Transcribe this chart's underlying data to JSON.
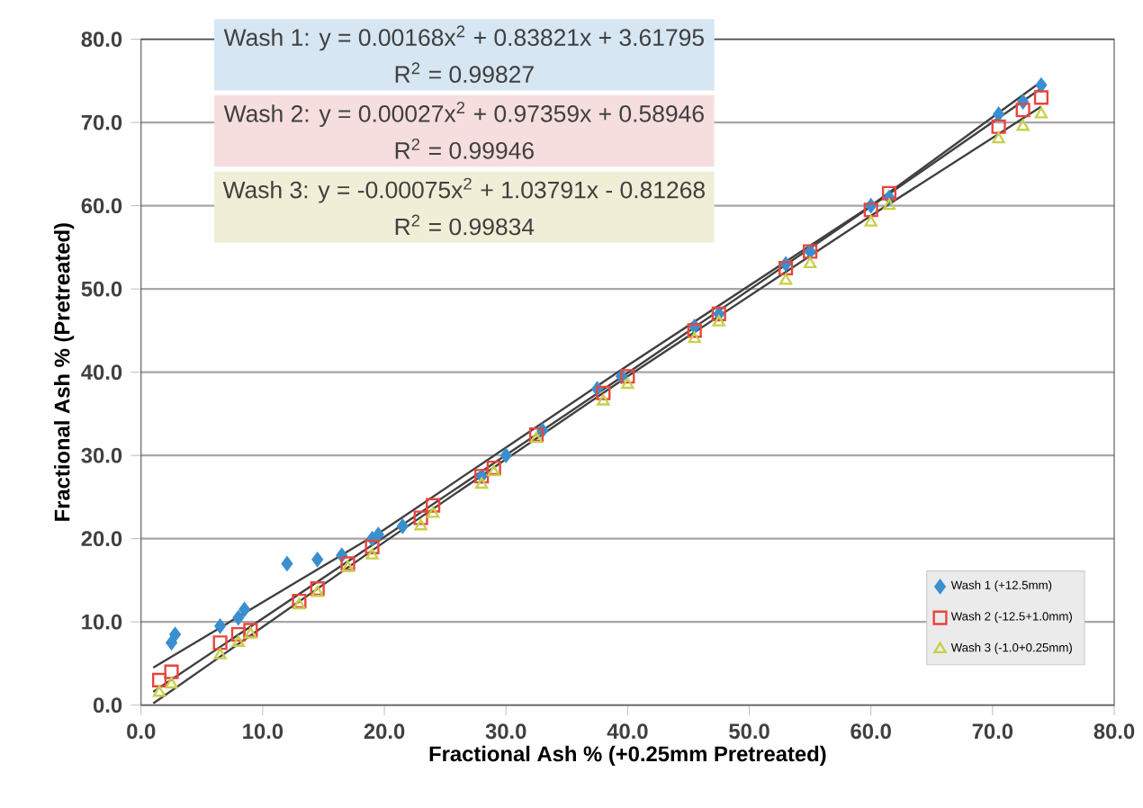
{
  "chart_data": {
    "type": "scatter",
    "xlabel": "Fractional Ash % (+0.25mm Pretreated)",
    "ylabel": "Fractional Ash % (Pretreated)",
    "xlim": [
      0,
      80
    ],
    "ylim": [
      0,
      80
    ],
    "xticks": [
      {
        "value": 0,
        "label": "0.0"
      },
      {
        "value": 10,
        "label": "10.0"
      },
      {
        "value": 20,
        "label": "20.0"
      },
      {
        "value": 30,
        "label": "30.0"
      },
      {
        "value": 40,
        "label": "40.0"
      },
      {
        "value": 50,
        "label": "50.0"
      },
      {
        "value": 60,
        "label": "60.0"
      },
      {
        "value": 70,
        "label": "70.0"
      },
      {
        "value": 80,
        "label": "80.0"
      }
    ],
    "yticks": [
      {
        "value": 0,
        "label": "0.0"
      },
      {
        "value": 10,
        "label": "10.0"
      },
      {
        "value": 20,
        "label": "20.0"
      },
      {
        "value": 30,
        "label": "30.0"
      },
      {
        "value": 40,
        "label": "40.0"
      },
      {
        "value": 50,
        "label": "50.0"
      },
      {
        "value": 60,
        "label": "60.0"
      },
      {
        "value": 70,
        "label": "70.0"
      },
      {
        "value": 80,
        "label": "80.0"
      }
    ],
    "grid": "y",
    "legend": "bottom right",
    "series": [
      {
        "name": "Wash 1 (+12.5mm)",
        "color": "#3a8fd0",
        "marker": "diamond",
        "x": [
          2.5,
          2.8,
          6.5,
          8,
          8.5,
          12,
          14.5,
          16.5,
          19,
          19.5,
          21.5,
          28,
          30,
          33,
          37.5,
          39.5,
          45.5,
          47.5,
          53,
          55,
          60,
          61.5,
          70.5,
          72.5,
          74
        ],
        "values": [
          7.5,
          8.5,
          9.5,
          10.5,
          11.5,
          17,
          17.5,
          18,
          20,
          20.5,
          21.5,
          27.5,
          30,
          33,
          38,
          39.5,
          45.5,
          47,
          53,
          54.5,
          60,
          61,
          71,
          72.5,
          74.5
        ]
      },
      {
        "name": "Wash 2 (-12.5+1.0mm)",
        "color": "#e8453c",
        "marker": "square",
        "x": [
          1.5,
          2.5,
          6.5,
          8,
          9,
          13,
          14.5,
          17,
          19,
          23,
          24,
          28,
          29,
          32.5,
          38,
          40,
          45.5,
          47.5,
          53,
          55,
          60,
          61.5,
          70.5,
          72.5,
          74
        ],
        "values": [
          3,
          4,
          7.5,
          8.5,
          9,
          12.5,
          14,
          17,
          19,
          22.5,
          24,
          27.5,
          28.5,
          32.5,
          37.5,
          39.5,
          45,
          47,
          52.5,
          54.5,
          59.5,
          61.5,
          69.5,
          71.5,
          73
        ]
      },
      {
        "name": "Wash 3 (-1.0+0.25mm)",
        "color": "#c8cf4a",
        "marker": "triangle",
        "x": [
          1.5,
          2.5,
          6.5,
          8,
          9,
          13,
          14.5,
          17,
          19,
          23,
          24,
          28,
          29,
          32.5,
          38,
          40,
          45.5,
          47.5,
          53,
          55,
          60,
          61.5,
          70.5,
          72.5,
          74
        ],
        "values": [
          1.5,
          2.5,
          6,
          7.5,
          8.5,
          12,
          13.5,
          16.5,
          18,
          21.5,
          23,
          26.5,
          28,
          32,
          36.5,
          38.5,
          44,
          46,
          51,
          53,
          58,
          60,
          68,
          69.5,
          71
        ]
      },
      {
        "type": "line",
        "color": "#404040",
        "marker": "none",
        "x": [
          1,
          20,
          40,
          60,
          74
        ],
        "values": [
          4.5,
          21.1,
          40.8,
          60.0,
          74.9
        ]
      },
      {
        "type": "line",
        "color": "#404040",
        "marker": "none",
        "x": [
          1,
          20,
          40,
          60,
          74
        ],
        "values": [
          1.6,
          20.2,
          39.9,
          59.9,
          74.1
        ]
      },
      {
        "type": "line",
        "color": "#404040",
        "marker": "none",
        "x": [
          1,
          20,
          40,
          60,
          74
        ],
        "values": [
          0.2,
          19.6,
          39.5,
          58.8,
          71.9
        ]
      }
    ],
    "annotations": [
      "Wash 1: y = 0.00168x$^{2}$ + 0.83821x + 3.61795",
      "R$^{2}$ = 0.99827",
      "Wash 2: y = 0.00027x$^{2}$ + 0.97359x + 0.58946",
      "R$^{2}$ = 0.99946",
      "Wash 3: y = -0.00075x$^{2}$ + 1.03791x - 0.81268",
      "R$^{2}$ = 0.99834"
    ]
  }
}
